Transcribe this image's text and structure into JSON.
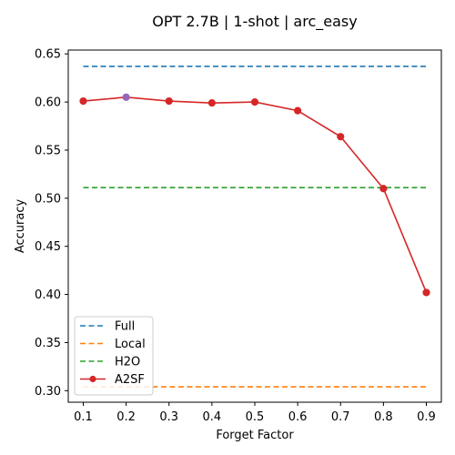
{
  "chart_data": {
    "type": "line",
    "title": "OPT 2.7B | 1-shot | arc_easy",
    "xlabel": "Forget Factor",
    "ylabel": "Accuracy",
    "x": [
      0.1,
      0.2,
      0.3,
      0.4,
      0.5,
      0.6,
      0.7,
      0.8,
      0.9
    ],
    "xlim": [
      0.065,
      0.935
    ],
    "ylim": [
      0.288,
      0.654
    ],
    "xticks": [
      "0.1",
      "0.2",
      "0.3",
      "0.4",
      "0.5",
      "0.6",
      "0.7",
      "0.8",
      "0.9"
    ],
    "yticks": [
      "0.30",
      "0.35",
      "0.40",
      "0.45",
      "0.50",
      "0.55",
      "0.60",
      "0.65"
    ],
    "grid": false,
    "legend_position": "lower-left",
    "series": [
      {
        "name": "Full",
        "style": "dashed",
        "color": "#1f77b4",
        "values": [
          0.637,
          0.637,
          0.637,
          0.637,
          0.637,
          0.637,
          0.637,
          0.637,
          0.637
        ]
      },
      {
        "name": "Local",
        "style": "dashed",
        "color": "#ff7f0e",
        "values": [
          0.304,
          0.304,
          0.304,
          0.304,
          0.304,
          0.304,
          0.304,
          0.304,
          0.304
        ]
      },
      {
        "name": "H2O",
        "style": "dashed",
        "color": "#2ca02c",
        "values": [
          0.511,
          0.511,
          0.511,
          0.511,
          0.511,
          0.511,
          0.511,
          0.511,
          0.511
        ]
      },
      {
        "name": "A2SF",
        "style": "solid-markers",
        "color": "#d62728",
        "values": [
          0.601,
          0.605,
          0.601,
          0.599,
          0.6,
          0.591,
          0.564,
          0.51,
          0.402
        ]
      }
    ],
    "highlight": {
      "series": "A2SF",
      "index": 1,
      "color": "#9467bd"
    }
  }
}
